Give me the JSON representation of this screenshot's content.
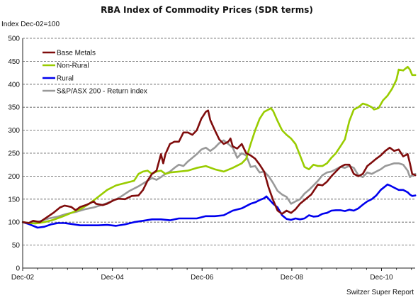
{
  "chart_data": {
    "type": "line",
    "title": "RBA Index of Commodity Prices (SDR terms)",
    "ylabel": "Index Dec-02=100",
    "xlabel": "",
    "source": "Switzer Super Report",
    "ylim": [
      0,
      500
    ],
    "yticks": [
      0,
      50,
      100,
      150,
      200,
      250,
      300,
      350,
      400,
      450,
      500
    ],
    "xlim": [
      2002.917,
      2011.667
    ],
    "xticks": [
      {
        "label": "Dec-02",
        "x": 2002.917
      },
      {
        "label": "Dec-04",
        "x": 2004.917
      },
      {
        "label": "Dec-06",
        "x": 2006.917
      },
      {
        "label": "Dec-08",
        "x": 2008.917
      },
      {
        "label": "Dec-10",
        "x": 2010.917
      }
    ],
    "grid": "horizontal dashed",
    "legend": "top-left",
    "series": [
      {
        "name": "Base Metals",
        "color": "#7f0c0c",
        "points": [
          [
            2002.92,
            100
          ],
          [
            2003.05,
            98
          ],
          [
            2003.15,
            103
          ],
          [
            2003.3,
            100
          ],
          [
            2003.45,
            110
          ],
          [
            2003.6,
            120
          ],
          [
            2003.75,
            132
          ],
          [
            2003.85,
            136
          ],
          [
            2004.0,
            133
          ],
          [
            2004.1,
            126
          ],
          [
            2004.2,
            133
          ],
          [
            2004.35,
            138
          ],
          [
            2004.5,
            145
          ],
          [
            2004.55,
            140
          ],
          [
            2004.7,
            137
          ],
          [
            2004.8,
            140
          ],
          [
            2004.95,
            148
          ],
          [
            2005.05,
            151
          ],
          [
            2005.2,
            150
          ],
          [
            2005.35,
            157
          ],
          [
            2005.5,
            158
          ],
          [
            2005.6,
            170
          ],
          [
            2005.7,
            190
          ],
          [
            2005.8,
            205
          ],
          [
            2005.9,
            212
          ],
          [
            2006.0,
            248
          ],
          [
            2006.05,
            228
          ],
          [
            2006.1,
            248
          ],
          [
            2006.2,
            270
          ],
          [
            2006.3,
            275
          ],
          [
            2006.4,
            275
          ],
          [
            2006.5,
            295
          ],
          [
            2006.6,
            295
          ],
          [
            2006.7,
            290
          ],
          [
            2006.8,
            300
          ],
          [
            2006.9,
            325
          ],
          [
            2007.0,
            340
          ],
          [
            2007.05,
            343
          ],
          [
            2007.1,
            322
          ],
          [
            2007.2,
            300
          ],
          [
            2007.3,
            280
          ],
          [
            2007.4,
            270
          ],
          [
            2007.5,
            275
          ],
          [
            2007.55,
            282
          ],
          [
            2007.6,
            265
          ],
          [
            2007.7,
            260
          ],
          [
            2007.8,
            270
          ],
          [
            2007.9,
            250
          ],
          [
            2008.0,
            245
          ],
          [
            2008.1,
            238
          ],
          [
            2008.2,
            225
          ],
          [
            2008.3,
            210
          ],
          [
            2008.4,
            175
          ],
          [
            2008.5,
            148
          ],
          [
            2008.6,
            125
          ],
          [
            2008.7,
            118
          ],
          [
            2008.8,
            125
          ],
          [
            2008.9,
            120
          ],
          [
            2009.0,
            128
          ],
          [
            2009.1,
            140
          ],
          [
            2009.2,
            148
          ],
          [
            2009.35,
            160
          ],
          [
            2009.5,
            182
          ],
          [
            2009.6,
            180
          ],
          [
            2009.7,
            188
          ],
          [
            2009.8,
            200
          ],
          [
            2009.9,
            210
          ],
          [
            2010.0,
            220
          ],
          [
            2010.1,
            225
          ],
          [
            2010.2,
            225
          ],
          [
            2010.3,
            205
          ],
          [
            2010.4,
            200
          ],
          [
            2010.5,
            205
          ],
          [
            2010.6,
            222
          ],
          [
            2010.7,
            230
          ],
          [
            2010.8,
            238
          ],
          [
            2010.9,
            245
          ],
          [
            2011.0,
            255
          ],
          [
            2011.1,
            262
          ],
          [
            2011.2,
            255
          ],
          [
            2011.3,
            258
          ],
          [
            2011.4,
            243
          ],
          [
            2011.5,
            248
          ],
          [
            2011.55,
            228
          ],
          [
            2011.6,
            205
          ],
          [
            2011.67,
            202
          ]
        ]
      },
      {
        "name": "Non-Rural",
        "color": "#99cc00",
        "points": [
          [
            2002.92,
            100
          ],
          [
            2003.05,
            98
          ],
          [
            2003.2,
            97
          ],
          [
            2003.4,
            100
          ],
          [
            2003.6,
            105
          ],
          [
            2003.8,
            112
          ],
          [
            2004.0,
            120
          ],
          [
            2004.2,
            128
          ],
          [
            2004.4,
            140
          ],
          [
            2004.6,
            155
          ],
          [
            2004.8,
            170
          ],
          [
            2005.0,
            180
          ],
          [
            2005.2,
            185
          ],
          [
            2005.4,
            190
          ],
          [
            2005.5,
            205
          ],
          [
            2005.6,
            210
          ],
          [
            2005.7,
            212
          ],
          [
            2005.8,
            205
          ],
          [
            2005.9,
            210
          ],
          [
            2006.0,
            212
          ],
          [
            2006.1,
            205
          ],
          [
            2006.2,
            208
          ],
          [
            2006.4,
            210
          ],
          [
            2006.6,
            212
          ],
          [
            2006.8,
            218
          ],
          [
            2007.0,
            222
          ],
          [
            2007.2,
            215
          ],
          [
            2007.4,
            210
          ],
          [
            2007.6,
            218
          ],
          [
            2007.8,
            228
          ],
          [
            2007.9,
            238
          ],
          [
            2008.0,
            270
          ],
          [
            2008.1,
            300
          ],
          [
            2008.2,
            325
          ],
          [
            2008.3,
            340
          ],
          [
            2008.4,
            345
          ],
          [
            2008.45,
            348
          ],
          [
            2008.5,
            342
          ],
          [
            2008.6,
            320
          ],
          [
            2008.7,
            300
          ],
          [
            2008.8,
            290
          ],
          [
            2008.9,
            282
          ],
          [
            2009.0,
            270
          ],
          [
            2009.1,
            245
          ],
          [
            2009.2,
            220
          ],
          [
            2009.3,
            215
          ],
          [
            2009.4,
            225
          ],
          [
            2009.5,
            222
          ],
          [
            2009.6,
            222
          ],
          [
            2009.7,
            228
          ],
          [
            2009.8,
            240
          ],
          [
            2009.9,
            250
          ],
          [
            2010.0,
            265
          ],
          [
            2010.1,
            280
          ],
          [
            2010.2,
            320
          ],
          [
            2010.3,
            345
          ],
          [
            2010.4,
            350
          ],
          [
            2010.5,
            358
          ],
          [
            2010.6,
            355
          ],
          [
            2010.7,
            350
          ],
          [
            2010.75,
            345
          ],
          [
            2010.85,
            348
          ],
          [
            2010.95,
            365
          ],
          [
            2011.05,
            375
          ],
          [
            2011.15,
            390
          ],
          [
            2011.25,
            410
          ],
          [
            2011.3,
            432
          ],
          [
            2011.4,
            430
          ],
          [
            2011.5,
            438
          ],
          [
            2011.55,
            432
          ],
          [
            2011.6,
            420
          ],
          [
            2011.67,
            420
          ]
        ]
      },
      {
        "name": "Rural",
        "color": "#0000ee",
        "points": [
          [
            2002.92,
            100
          ],
          [
            2003.05,
            96
          ],
          [
            2003.15,
            92
          ],
          [
            2003.25,
            88
          ],
          [
            2003.4,
            90
          ],
          [
            2003.55,
            95
          ],
          [
            2003.7,
            98
          ],
          [
            2003.85,
            98
          ],
          [
            2004.0,
            96
          ],
          [
            2004.2,
            93
          ],
          [
            2004.4,
            93
          ],
          [
            2004.6,
            93
          ],
          [
            2004.8,
            94
          ],
          [
            2005.0,
            92
          ],
          [
            2005.2,
            95
          ],
          [
            2005.4,
            100
          ],
          [
            2005.6,
            103
          ],
          [
            2005.8,
            106
          ],
          [
            2006.0,
            106
          ],
          [
            2006.2,
            104
          ],
          [
            2006.4,
            108
          ],
          [
            2006.6,
            108
          ],
          [
            2006.8,
            108
          ],
          [
            2007.0,
            113
          ],
          [
            2007.2,
            113
          ],
          [
            2007.4,
            115
          ],
          [
            2007.6,
            125
          ],
          [
            2007.8,
            130
          ],
          [
            2008.0,
            140
          ],
          [
            2008.1,
            143
          ],
          [
            2008.2,
            148
          ],
          [
            2008.3,
            152
          ],
          [
            2008.35,
            156
          ],
          [
            2008.5,
            140
          ],
          [
            2008.6,
            132
          ],
          [
            2008.7,
            115
          ],
          [
            2008.8,
            107
          ],
          [
            2008.9,
            105
          ],
          [
            2009.0,
            108
          ],
          [
            2009.1,
            106
          ],
          [
            2009.2,
            108
          ],
          [
            2009.3,
            115
          ],
          [
            2009.4,
            112
          ],
          [
            2009.5,
            113
          ],
          [
            2009.6,
            118
          ],
          [
            2009.7,
            120
          ],
          [
            2009.8,
            125
          ],
          [
            2009.9,
            126
          ],
          [
            2010.0,
            126
          ],
          [
            2010.1,
            124
          ],
          [
            2010.2,
            127
          ],
          [
            2010.3,
            125
          ],
          [
            2010.4,
            130
          ],
          [
            2010.5,
            138
          ],
          [
            2010.6,
            145
          ],
          [
            2010.7,
            150
          ],
          [
            2010.8,
            158
          ],
          [
            2010.9,
            170
          ],
          [
            2011.0,
            178
          ],
          [
            2011.05,
            182
          ],
          [
            2011.1,
            180
          ],
          [
            2011.2,
            175
          ],
          [
            2011.3,
            170
          ],
          [
            2011.4,
            170
          ],
          [
            2011.5,
            165
          ],
          [
            2011.55,
            160
          ],
          [
            2011.6,
            157
          ],
          [
            2011.67,
            158
          ]
        ]
      },
      {
        "name": "S&P/ASX 200 - Return index",
        "color": "#999999",
        "points": [
          [
            2002.92,
            100
          ],
          [
            2003.1,
            98
          ],
          [
            2003.3,
            102
          ],
          [
            2003.5,
            108
          ],
          [
            2003.7,
            112
          ],
          [
            2003.9,
            118
          ],
          [
            2004.1,
            122
          ],
          [
            2004.3,
            128
          ],
          [
            2004.5,
            132
          ],
          [
            2004.7,
            138
          ],
          [
            2004.9,
            145
          ],
          [
            2005.1,
            155
          ],
          [
            2005.3,
            168
          ],
          [
            2005.5,
            178
          ],
          [
            2005.7,
            190
          ],
          [
            2005.8,
            196
          ],
          [
            2005.9,
            192
          ],
          [
            2006.0,
            198
          ],
          [
            2006.1,
            205
          ],
          [
            2006.2,
            210
          ],
          [
            2006.3,
            218
          ],
          [
            2006.4,
            225
          ],
          [
            2006.5,
            222
          ],
          [
            2006.6,
            232
          ],
          [
            2006.7,
            240
          ],
          [
            2006.8,
            248
          ],
          [
            2006.9,
            258
          ],
          [
            2007.0,
            262
          ],
          [
            2007.1,
            255
          ],
          [
            2007.2,
            262
          ],
          [
            2007.3,
            272
          ],
          [
            2007.4,
            278
          ],
          [
            2007.5,
            270
          ],
          [
            2007.6,
            262
          ],
          [
            2007.7,
            240
          ],
          [
            2007.8,
            250
          ],
          [
            2007.9,
            245
          ],
          [
            2008.0,
            220
          ],
          [
            2008.1,
            222
          ],
          [
            2008.2,
            208
          ],
          [
            2008.3,
            210
          ],
          [
            2008.4,
            200
          ],
          [
            2008.5,
            185
          ],
          [
            2008.6,
            168
          ],
          [
            2008.7,
            160
          ],
          [
            2008.8,
            155
          ],
          [
            2008.9,
            140
          ],
          [
            2009.0,
            145
          ],
          [
            2009.1,
            150
          ],
          [
            2009.2,
            162
          ],
          [
            2009.3,
            170
          ],
          [
            2009.4,
            180
          ],
          [
            2009.5,
            190
          ],
          [
            2009.6,
            202
          ],
          [
            2009.7,
            208
          ],
          [
            2009.8,
            210
          ],
          [
            2009.9,
            215
          ],
          [
            2010.0,
            220
          ],
          [
            2010.1,
            218
          ],
          [
            2010.2,
            222
          ],
          [
            2010.3,
            218
          ],
          [
            2010.4,
            202
          ],
          [
            2010.5,
            198
          ],
          [
            2010.6,
            208
          ],
          [
            2010.7,
            205
          ],
          [
            2010.8,
            210
          ],
          [
            2010.9,
            215
          ],
          [
            2011.0,
            222
          ],
          [
            2011.1,
            225
          ],
          [
            2011.2,
            228
          ],
          [
            2011.3,
            228
          ],
          [
            2011.4,
            225
          ],
          [
            2011.5,
            212
          ],
          [
            2011.55,
            198
          ],
          [
            2011.6,
            202
          ],
          [
            2011.67,
            205
          ]
        ]
      }
    ]
  }
}
